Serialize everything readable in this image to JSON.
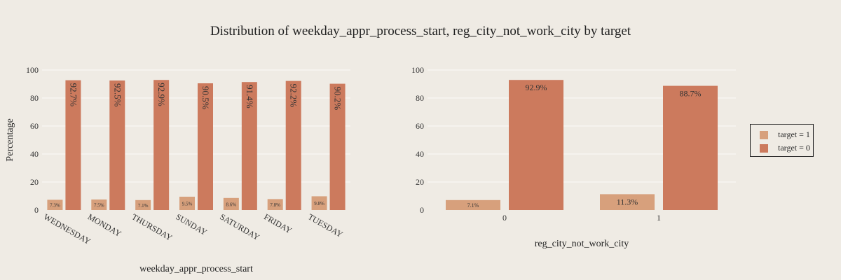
{
  "title": "Distribution of weekday_appr_process_start, reg_city_not_work_city by target",
  "legend": {
    "items": [
      {
        "label": "target = 1",
        "color": "#d7a07c"
      },
      {
        "label": "target = 0",
        "color": "#cc7a5d"
      }
    ],
    "placement": "right"
  },
  "chart_data": [
    {
      "type": "bar",
      "xlabel": "weekday_appr_process_start",
      "ylabel": "Percentage",
      "ylim": [
        0,
        100
      ],
      "yticks": [
        0,
        20,
        40,
        60,
        80,
        100
      ],
      "grid": true,
      "categories": [
        "WEDNESDAY",
        "MONDAY",
        "THURSDAY",
        "SUNDAY",
        "SATURDAY",
        "FRIDAY",
        "TUESDAY"
      ],
      "series": [
        {
          "name": "target = 1",
          "values": [
            7.3,
            7.5,
            7.1,
            9.5,
            8.6,
            7.8,
            9.8
          ],
          "labels": [
            "7.3%",
            "7.5%",
            "7.1%",
            "9.5%",
            "8.6%",
            "7.8%",
            "9.8%"
          ]
        },
        {
          "name": "target = 0",
          "values": [
            92.7,
            92.5,
            92.9,
            90.5,
            91.4,
            92.2,
            90.2
          ],
          "labels": [
            "92.7%",
            "92.5%",
            "92.9%",
            "90.5%",
            "91.4%",
            "92.2%",
            "90.2%"
          ]
        }
      ]
    },
    {
      "type": "bar",
      "xlabel": "reg_city_not_work_city",
      "ylabel": "",
      "ylim": [
        0,
        100
      ],
      "yticks": [
        0,
        20,
        40,
        60,
        80,
        100
      ],
      "grid": true,
      "categories": [
        "0",
        "1"
      ],
      "series": [
        {
          "name": "target = 1",
          "values": [
            7.1,
            11.3
          ],
          "labels": [
            "7.1%",
            "11.3%"
          ]
        },
        {
          "name": "target = 0",
          "values": [
            92.9,
            88.7
          ],
          "labels": [
            "92.9%",
            "88.7%"
          ]
        }
      ]
    }
  ]
}
